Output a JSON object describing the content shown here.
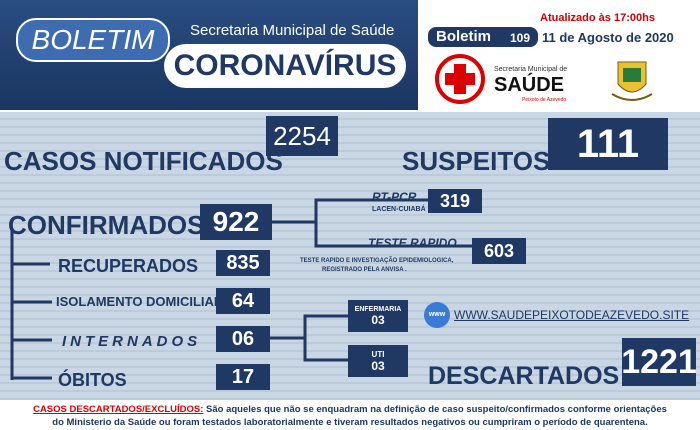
{
  "header": {
    "boletim_title": "BOLETIM",
    "secretaria": "Secretaria Municipal de Saúde",
    "coronavirus": "CORONAVÍRUS",
    "updated": "Atualizado às 17:00hs",
    "boletim_label": "Boletim",
    "boletim_number": "109",
    "date": "11 de Agosto de 2020",
    "logo_line1": "Secretaria Municipal de",
    "logo_line2": "SAÚDE",
    "logo_line3": "Peixoto de Azevedo"
  },
  "stats": {
    "notificados": {
      "label": "CASOS NOTIFICADOS",
      "value": "2254"
    },
    "suspeitos": {
      "label": "SUSPEITOS",
      "value": "111"
    },
    "confirmados": {
      "label": "CONFIRMADOS",
      "value": "922"
    },
    "rt_pcr": {
      "label": "RT-PCR",
      "sub": "LACEN-CUIABÁ",
      "value": "319"
    },
    "teste_rapido": {
      "label": "TESTE RAPIDO",
      "value": "603",
      "note_line1": "TESTE RAPIDO  E INVESTIGAÇÃO EPIDEMIOLOGICA,",
      "note_line2": "REGISTRADO PELA ANVISA ."
    },
    "recuperados": {
      "label": "RECUPERADOS",
      "value": "835"
    },
    "isolamento": {
      "label": "ISOLAMENTO DOMICILIAR",
      "value": "64"
    },
    "internados": {
      "label": "INTERNADOS",
      "value": "06"
    },
    "enfermaria": {
      "label": "ENFERMARIA",
      "value": "03"
    },
    "uti": {
      "label": "UTI",
      "value": "03"
    },
    "obitos": {
      "label": "ÓBITOS",
      "value": "17"
    },
    "descartados": {
      "label": "DESCARTADOS",
      "value": "1221"
    }
  },
  "website": {
    "icon": "www",
    "url": "WWW.SAUDEPEIXOTODEAZEVEDO.SITE"
  },
  "footer": {
    "label": "CASOS DESCARTADOS/EXCLUÍDOS:",
    "line1": "São aqueles que não se enquadram na definição de caso suspeito/confirmados conforme orientações",
    "line2": "do Ministerio da Saúde ou foram testados laboratorialmente e tiveram resultados negativos ou cumpriram o período de quarentena."
  }
}
